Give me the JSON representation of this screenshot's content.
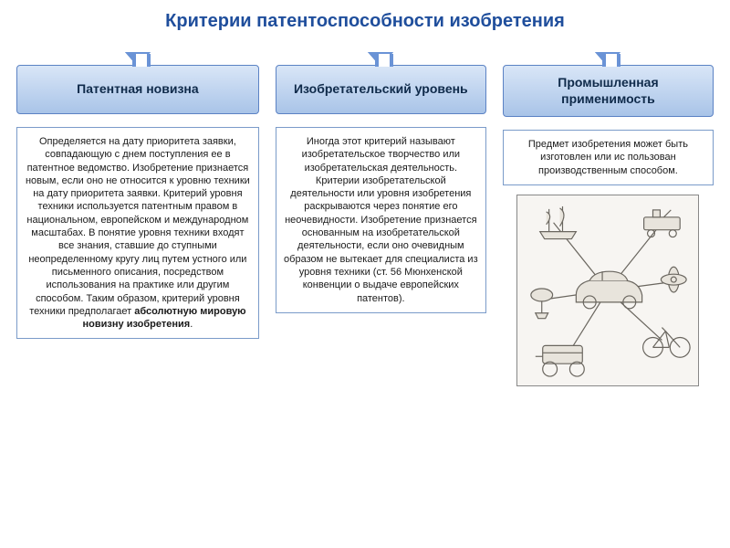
{
  "title": "Критерии патентоспособности изобретения",
  "title_color": "#1f4e9c",
  "arrow_border_color": "#2f5fa8",
  "arrow_fill_color": "#6a93d6",
  "header_bg_gradient_top": "#d9e6f7",
  "header_bg_gradient_bottom": "#a9c4e8",
  "header_border_color": "#5b82c4",
  "header_text_color": "#0f2a4a",
  "desc_border_color": "#7a9bc9",
  "desc_text_color": "#1a1a1a",
  "columns": [
    {
      "header": "Патентная новизна",
      "desc_pre": "Определяется на дату приоритета заявки, совпадающую с днем поступления ее в патентное ведомство. Изобретение признается новым, если оно не относится к уровню техники на дату приоритета заявки. Критерий уровня техники используется патентным правом в национальном, европейском и международном масштабах. В понятие уровня техники входят все знания, ставшие до ступными неопределенному кругу лиц путем устного или письменного описания, посредством использования на практике или другим способом. Таким образом, критерий уровня техники предполагает ",
      "desc_bold": "абсолютную мировую новизну изобретения",
      "desc_post": "."
    },
    {
      "header": "Изобретательский уровень",
      "desc_pre": "Иногда этот критерий называют изобретательское творчество или изобретательская деятельность. Критерии изобретательской деятельности или уровня изобретения раскрываются через понятие его неочевидности. Изобретение признается основанным на изобретательской деятельности, если оно очевидным образом не вытекает для специалиста из уровня техники (ст. 56 Мюнхенской конвенции о выдаче европейских патентов).",
      "desc_bold": "",
      "desc_post": ""
    },
    {
      "header": "Промышленная применимость",
      "desc_pre": "Предмет изобретения может быть изготовлен или ис пользован производственным способом.",
      "desc_bold": "",
      "desc_post": ""
    }
  ],
  "illustration": {
    "stroke": "#6a665f",
    "fill": "#e8e4dc"
  }
}
